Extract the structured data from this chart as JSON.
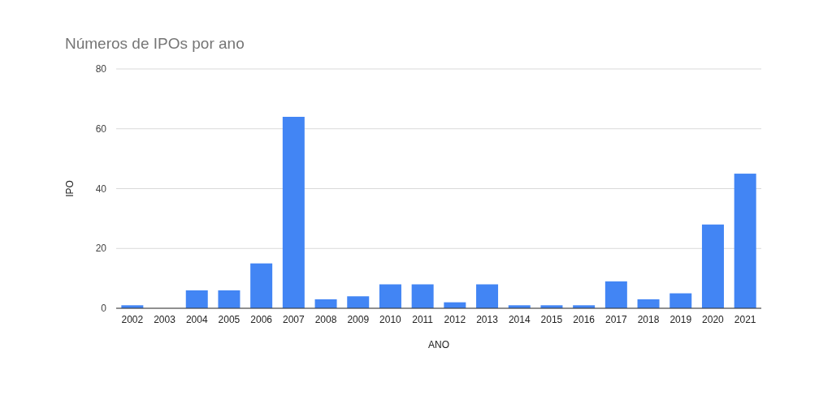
{
  "chart_data": {
    "type": "bar",
    "title": "Números de IPOs por ano",
    "xlabel": "ANO",
    "ylabel": "IPO",
    "categories": [
      "2002",
      "2003",
      "2004",
      "2005",
      "2006",
      "2007",
      "2008",
      "2009",
      "2010",
      "2011",
      "2012",
      "2013",
      "2014",
      "2015",
      "2016",
      "2017",
      "2018",
      "2019",
      "2020",
      "2021"
    ],
    "values": [
      1,
      0,
      6,
      6,
      15,
      64,
      3,
      4,
      8,
      8,
      2,
      8,
      1,
      1,
      1,
      9,
      3,
      5,
      28,
      45
    ],
    "color": "#4285f4",
    "ylim": [
      0,
      80
    ],
    "yticks": [
      0,
      20,
      40,
      60,
      80
    ],
    "grid": "y"
  }
}
